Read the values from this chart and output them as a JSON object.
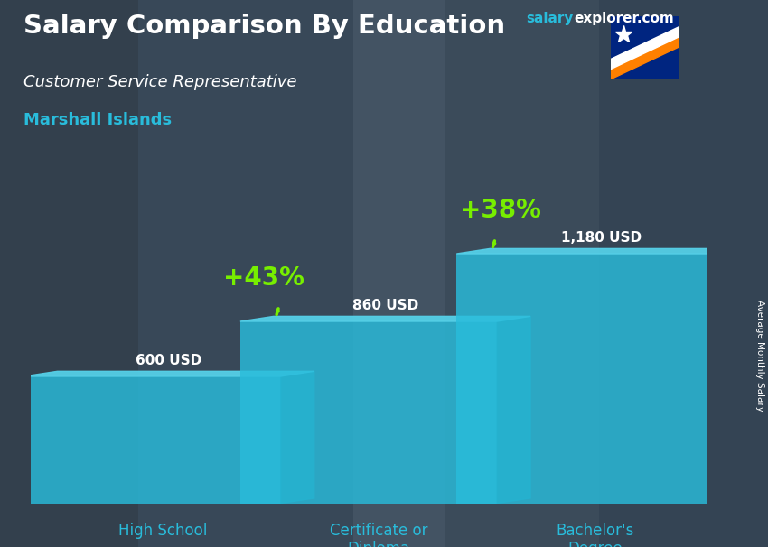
{
  "title": "Salary Comparison By Education",
  "subtitle": "Customer Service Representative",
  "location": "Marshall Islands",
  "categories": [
    "High School",
    "Certificate or\nDiploma",
    "Bachelor's\nDegree"
  ],
  "values": [
    600,
    860,
    1180
  ],
  "value_labels": [
    "600 USD",
    "860 USD",
    "1,180 USD"
  ],
  "pct_labels": [
    "+43%",
    "+38%"
  ],
  "bar_color_face": "#29BCDB",
  "bar_color_dark": "#1488A0",
  "bar_color_top": "#55D0E8",
  "bar_alpha": 0.82,
  "arrow_color": "#77EE00",
  "pct_color": "#77EE00",
  "title_color": "#FFFFFF",
  "subtitle_color": "#FFFFFF",
  "location_color": "#29BCDB",
  "tick_color": "#29BCDB",
  "brand_color_salary": "#29BCDB",
  "brand_color_rest": "#FFFFFF",
  "side_label": "Average Monthly Salary",
  "figsize": [
    8.5,
    6.06
  ],
  "dpi": 100,
  "ylim": [
    0,
    1500
  ],
  "bar_width": 0.38,
  "bar_positions": [
    0.18,
    0.5,
    0.82
  ],
  "bg_color": "#3d4d5c",
  "bg_color2": "#2a3a4a"
}
